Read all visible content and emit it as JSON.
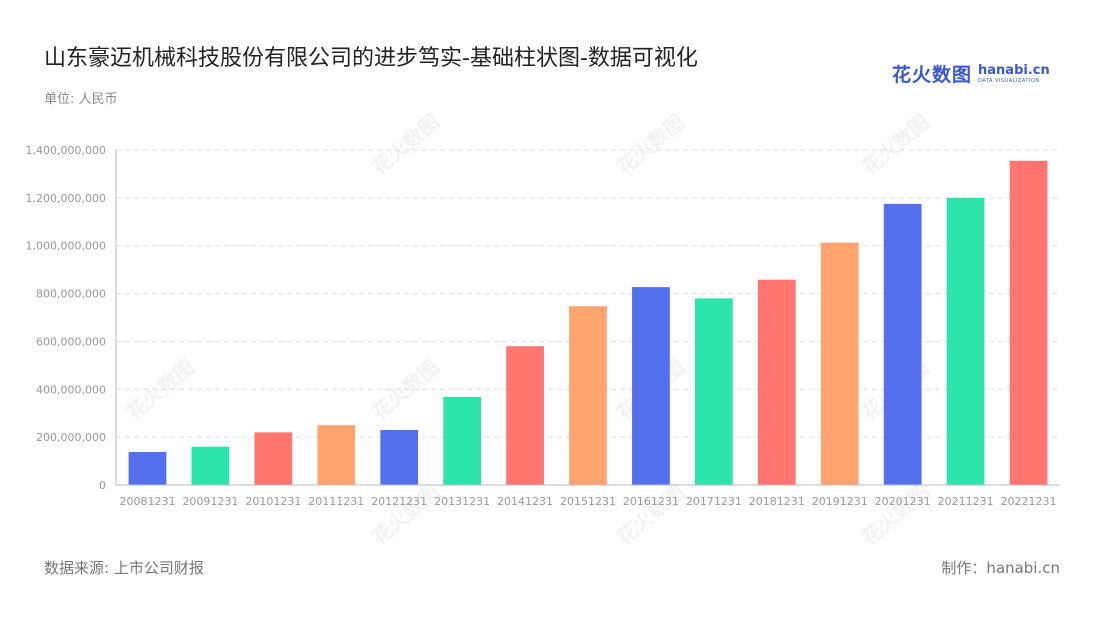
{
  "title": "山东豪迈机械科技股份有限公司的进步笃实-基础柱状图-数据可视化",
  "unit_label": "单位: 人民币",
  "logo": {
    "cn": "花火数图",
    "en": "hanabi.cn",
    "sub": "DATA VISUALIZATION"
  },
  "footer": {
    "source": "数据来源: 上市公司财报",
    "maker": "制作：hanabi.cn"
  },
  "watermark_text": "花火数图",
  "colors": {
    "bar_palette": [
      "#5470ee",
      "#2de5ac",
      "#ff7671",
      "#ffa46f"
    ],
    "grid": "#dddddd",
    "axis": "#bbbbbb"
  },
  "chart_data": {
    "type": "bar",
    "title": "山东豪迈机械科技股份有限公司的进步笃实-基础柱状图-数据可视化",
    "categories": [
      "20081231",
      "20091231",
      "20101231",
      "20111231",
      "20121231",
      "20131231",
      "20141231",
      "20151231",
      "20161231",
      "20171231",
      "20181231",
      "20191231",
      "20201231",
      "20211231",
      "20221231"
    ],
    "values": [
      138000000,
      160000000,
      220000000,
      250000000,
      230000000,
      368000000,
      580000000,
      747000000,
      827000000,
      780000000,
      858000000,
      1013000000,
      1175000000,
      1200000000,
      1355000000
    ],
    "bar_color_index": [
      0,
      1,
      2,
      3,
      0,
      1,
      2,
      3,
      0,
      1,
      2,
      3,
      0,
      1,
      2
    ],
    "ylim": [
      0,
      1400000000
    ],
    "yticks": [
      0,
      200000000,
      400000000,
      600000000,
      800000000,
      1000000000,
      1200000000,
      1400000000
    ],
    "ytick_labels": [
      "0",
      "200,000,000",
      "400,000,000",
      "600,000,000",
      "800,000,000",
      "1,000,000,000",
      "1,200,000,000",
      "1,400,000,000"
    ],
    "grid": true,
    "legend": "none",
    "xlabel": "",
    "ylabel": ""
  }
}
